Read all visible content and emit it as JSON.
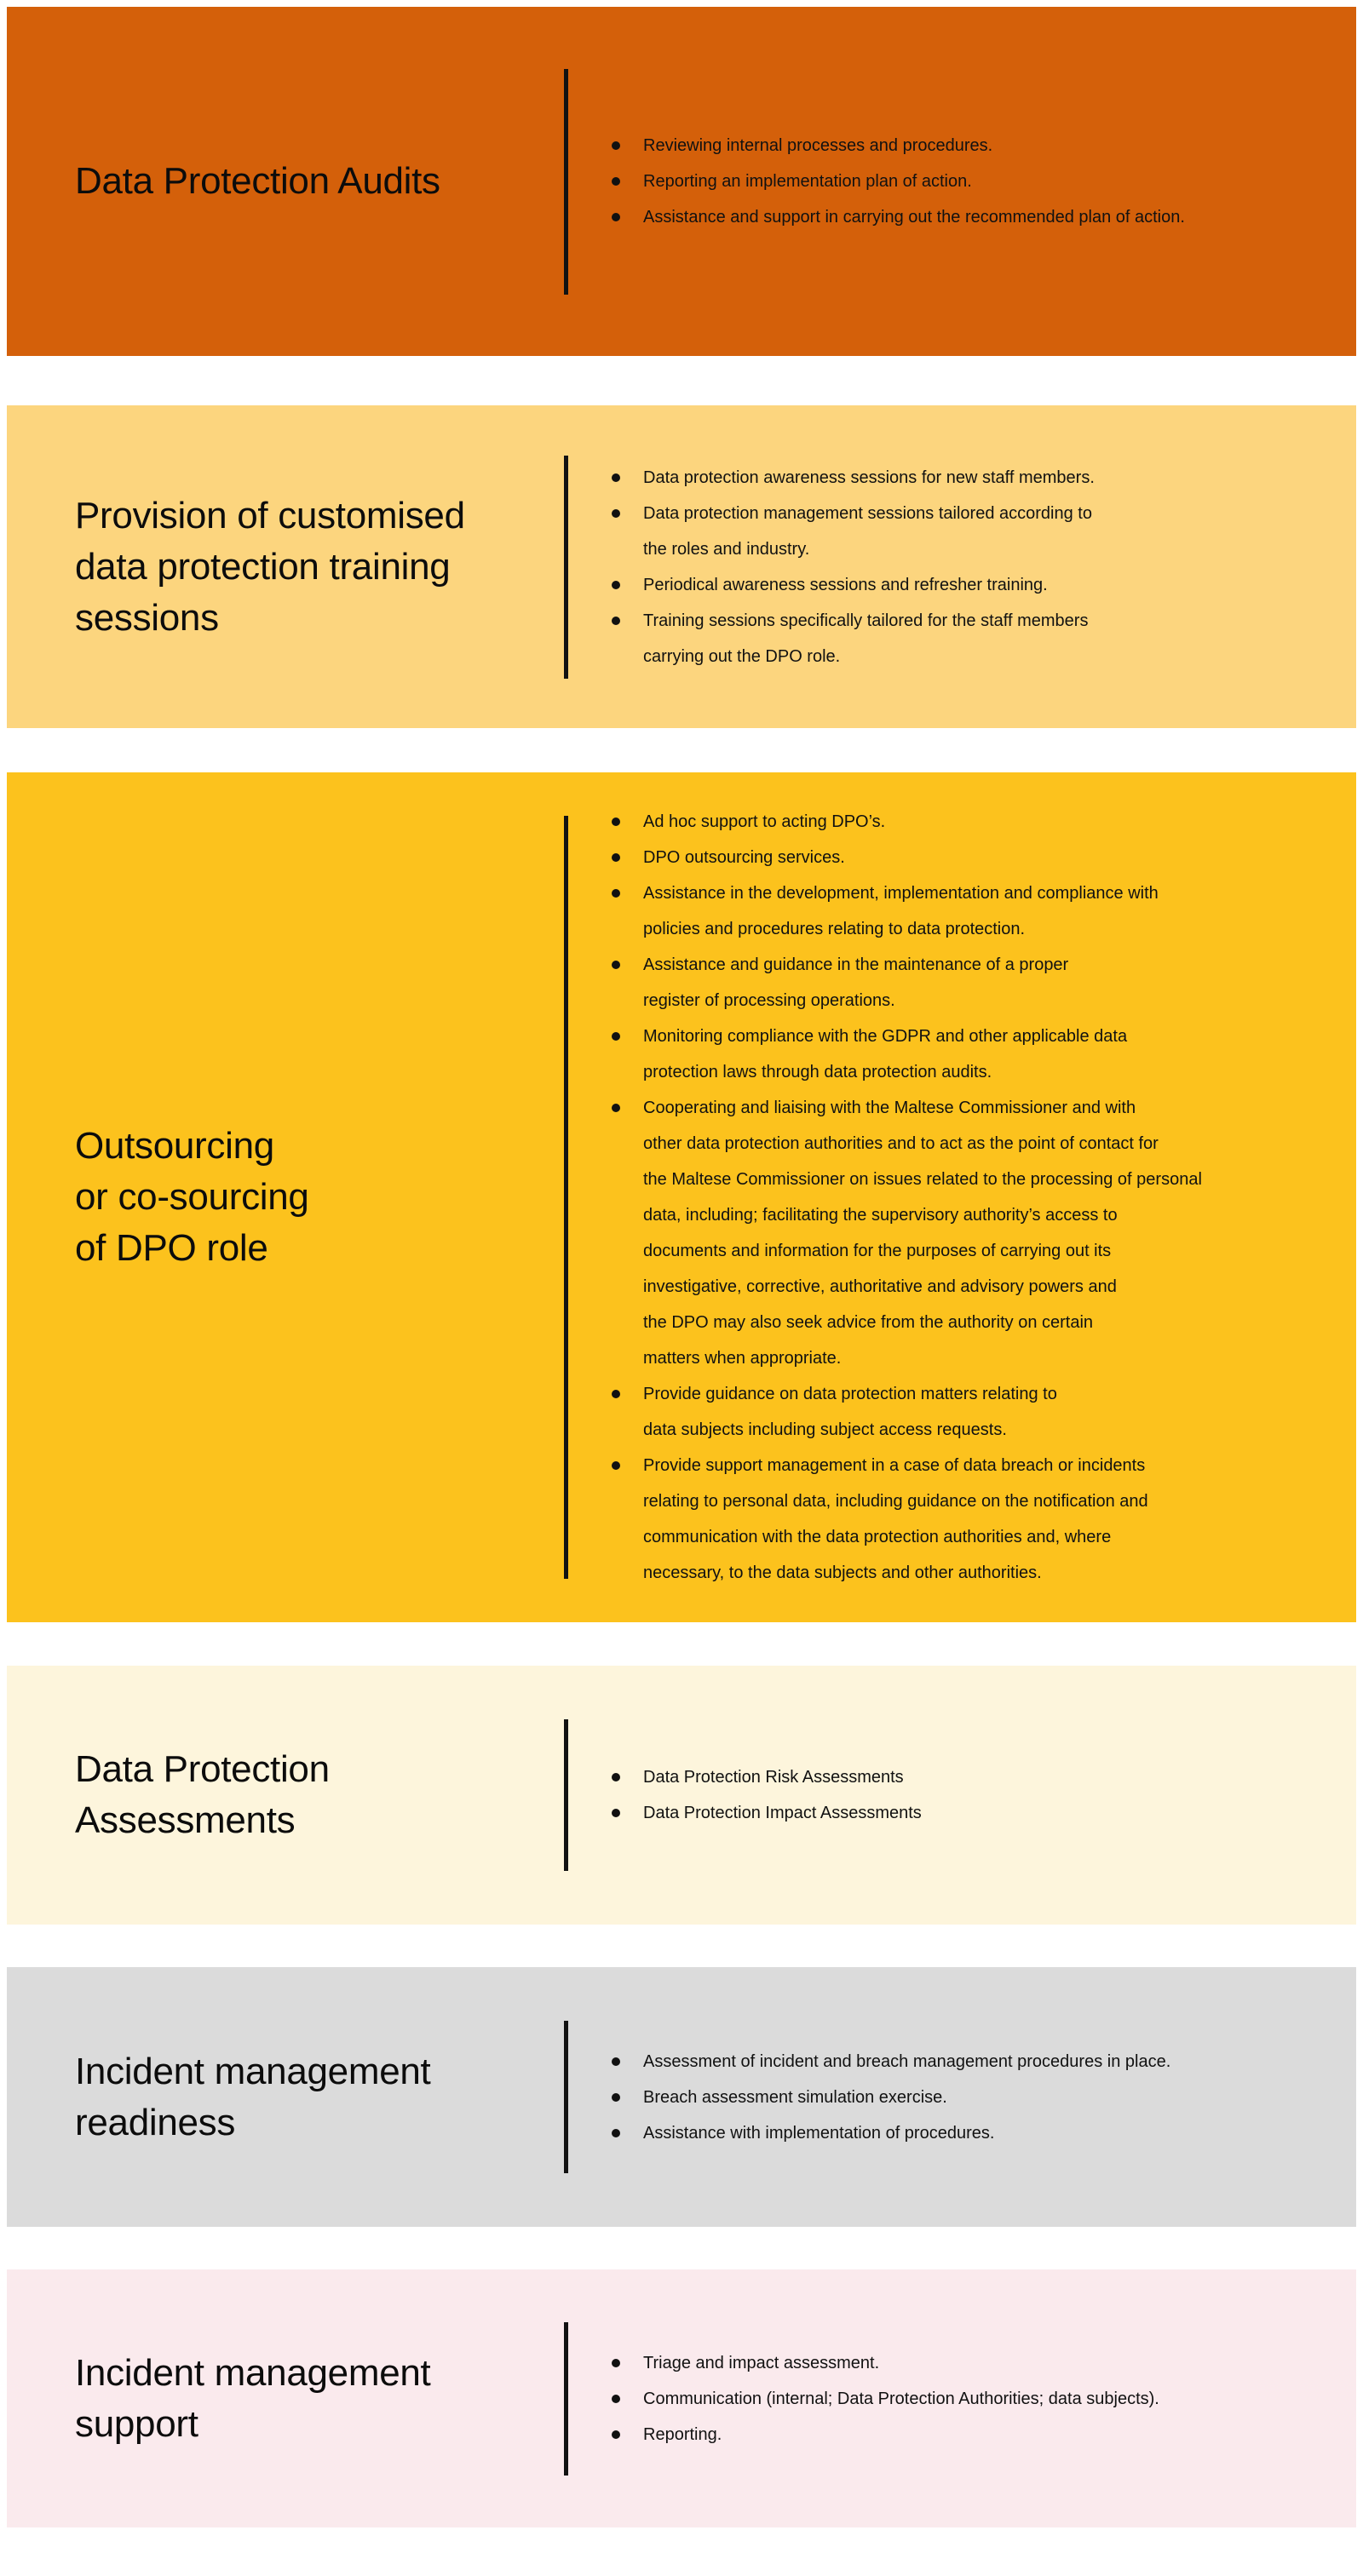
{
  "colors": {
    "page_background": "#ffffff",
    "text": "#111111",
    "divider_bar": "#121212"
  },
  "sections": [
    {
      "id": "data-protection-audits",
      "title": "Data Protection Audits",
      "background": "#d4600a",
      "bullets": [
        "Reviewing internal processes and procedures.",
        "Reporting an implementation plan of action.",
        "Assistance and support in carrying out the recommended plan of action."
      ]
    },
    {
      "id": "customised-training-sessions",
      "title": "Provision of customised\ndata protection training\nsessions",
      "background": "#fcd57e",
      "bullets": [
        "Data protection awareness sessions for new staff members.",
        "Data protection management sessions tailored according to\nthe roles and industry.",
        "Periodical awareness sessions and refresher training.",
        "Training sessions specifically tailored for the staff members\ncarrying out the DPO role."
      ]
    },
    {
      "id": "outsourcing-dpo-role",
      "title": "Outsourcing\nor co-sourcing\nof DPO role",
      "background": "#fcc21d",
      "bullets": [
        "Ad hoc support to acting DPO’s.",
        "DPO outsourcing services.",
        "Assistance in the development, implementation and compliance with\npolicies and procedures relating to data protection.",
        "Assistance and guidance in the maintenance of a proper\nregister of processing operations.",
        "Monitoring compliance with the GDPR and other applicable data\nprotection laws through data protection audits.",
        "Cooperating and liaising with the Maltese Commissioner and with\nother data protection authorities and to act as the point of contact for\nthe Maltese Commissioner on issues related to the processing of personal\ndata, including; facilitating the supervisory authority’s access to\ndocuments and information for the purposes of carrying out its\ninvestigative, corrective, authoritative and advisory powers and\nthe DPO may also seek advice from the authority on certain\nmatters when appropriate.",
        "Provide guidance on data protection matters relating to\ndata subjects including subject access requests.",
        "Provide support management in a case of data breach or incidents\nrelating to personal data, including guidance on the notification and\ncommunication with the data protection authorities and, where\nnecessary, to the data subjects and other authorities."
      ]
    },
    {
      "id": "data-protection-assessments",
      "title": "Data Protection\nAssessments",
      "background": "#fdf5dc",
      "bullets": [
        "Data Protection Risk Assessments",
        "Data Protection Impact Assessments"
      ]
    },
    {
      "id": "incident-management-readiness",
      "title": "Incident management\nreadiness",
      "background": "#dbdbdb",
      "bullets": [
        "Assessment of incident and breach management procedures in place.",
        "Breach assessment simulation exercise.",
        "Assistance with implementation of procedures."
      ]
    },
    {
      "id": "incident-management-support",
      "title": "Incident management\nsupport",
      "background": "#faeaed",
      "bullets": [
        "Triage and impact assessment.",
        "Communication (internal; Data Protection Authorities; data subjects).",
        "Reporting."
      ]
    }
  ]
}
